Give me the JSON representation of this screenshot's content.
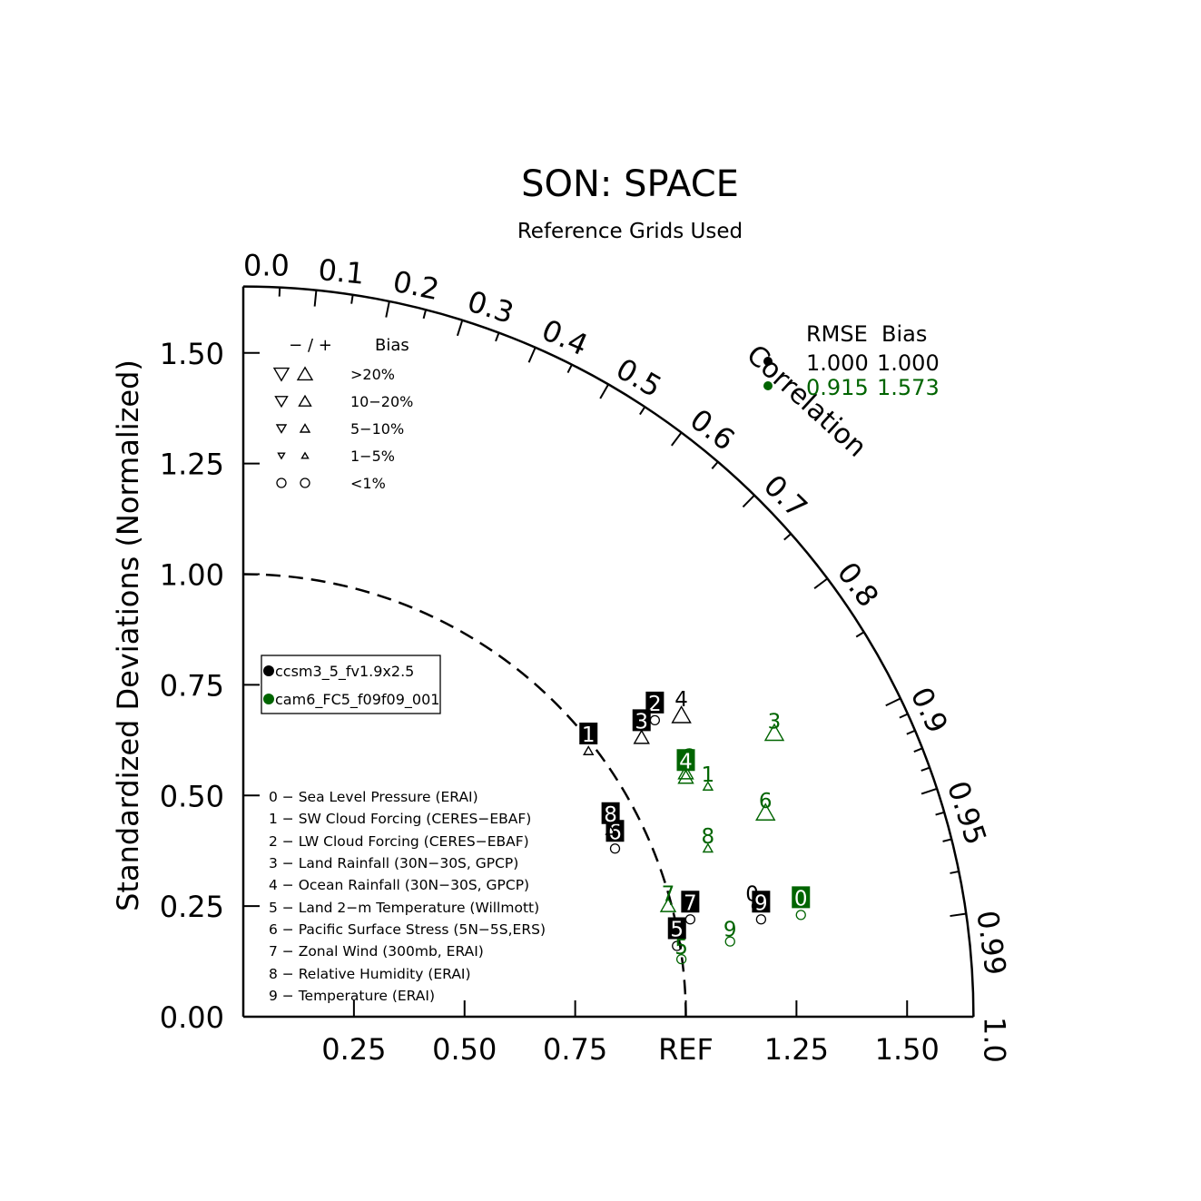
{
  "title": "SON: SPACE",
  "subtitle": "Reference Grids Used",
  "colors": {
    "case1": "#000000",
    "case2": "#006400"
  },
  "chart_data": {
    "type": "scatter",
    "ylabel": "Standardized Deviations (Normalized)",
    "arc_label": "Correlation",
    "ref_label": "REF",
    "max_std": 1.65,
    "x_ticks": [
      "0.25",
      "0.50",
      "0.75",
      "REF",
      "1.25",
      "1.50"
    ],
    "x_tick_values": [
      0.25,
      0.5,
      0.75,
      1.0,
      1.25,
      1.5
    ],
    "y_ticks": [
      "0.00",
      "0.25",
      "0.50",
      "0.75",
      "1.00",
      "1.25",
      "1.50"
    ],
    "y_tick_values": [
      0,
      0.25,
      0.5,
      0.75,
      1.0,
      1.25,
      1.5
    ],
    "corr_labels": [
      "0.0",
      "0.1",
      "0.2",
      "0.3",
      "0.4",
      "0.5",
      "0.6",
      "0.7",
      "0.8",
      "0.9",
      "0.95",
      "0.99",
      "1.0"
    ],
    "corr_label_values": [
      0,
      0.1,
      0.2,
      0.3,
      0.4,
      0.5,
      0.6,
      0.7,
      0.8,
      0.9,
      0.95,
      0.99,
      1.0
    ],
    "corr_minor_ticks": [
      0.05,
      0.15,
      0.25,
      0.35,
      0.45,
      0.55,
      0.65,
      0.75,
      0.85,
      0.91,
      0.92,
      0.93,
      0.94,
      0.96,
      0.97,
      0.98
    ],
    "series": [
      {
        "name": "ccsm3_5_fv1.9x2.5",
        "rmse": "1.000",
        "bias": "1.000",
        "points": [
          {
            "id": "0",
            "x": 1.15,
            "y": 0.28,
            "label_style": "plain",
            "marker_x": 1.17,
            "marker_y": 0.22,
            "marker": "circle"
          },
          {
            "id": "1",
            "x": 0.78,
            "y": 0.64,
            "label_style": "filled",
            "marker_x": 0.78,
            "marker_y": 0.6,
            "marker": "up-small"
          },
          {
            "id": "2",
            "x": 0.93,
            "y": 0.71,
            "label_style": "filled",
            "marker_x": 0.93,
            "marker_y": 0.67,
            "marker": "circle"
          },
          {
            "id": "3",
            "x": 0.9,
            "y": 0.67,
            "label_style": "filled",
            "marker_x": 0.9,
            "marker_y": 0.63,
            "marker": "up-mid"
          },
          {
            "id": "4",
            "x": 0.99,
            "y": 0.72,
            "label_style": "plain",
            "marker_x": 0.99,
            "marker_y": 0.68,
            "marker": "up-large"
          },
          {
            "id": "5",
            "x": 0.98,
            "y": 0.2,
            "label_style": "filled",
            "marker_x": 0.98,
            "marker_y": 0.16,
            "marker": "circle"
          },
          {
            "id": "6",
            "x": 0.84,
            "y": 0.42,
            "label_style": "filled",
            "marker_x": 0.84,
            "marker_y": 0.38,
            "marker": "circle"
          },
          {
            "id": "7",
            "x": 1.01,
            "y": 0.26,
            "label_style": "filled",
            "marker_x": 1.01,
            "marker_y": 0.22,
            "marker": "circle"
          },
          {
            "id": "8",
            "x": 0.83,
            "y": 0.46,
            "label_style": "filled",
            "marker_x": 0.83,
            "marker_y": 0.42,
            "marker": "up-small"
          },
          {
            "id": "9",
            "x": 1.17,
            "y": 0.26,
            "label_style": "filled",
            "marker_x": 1.16,
            "marker_y": 0.25,
            "marker": "circle"
          }
        ]
      },
      {
        "name": "cam6_FC5_f09f09_001",
        "rmse": "0.915",
        "bias": "1.573",
        "points": [
          {
            "id": "0",
            "x": 1.26,
            "y": 0.27,
            "label_style": "filled",
            "marker_x": 1.26,
            "marker_y": 0.23,
            "marker": "circle"
          },
          {
            "id": "1",
            "x": 1.05,
            "y": 0.55,
            "label_style": "plain",
            "marker_x": 1.05,
            "marker_y": 0.52,
            "marker": "up-small"
          },
          {
            "id": "2",
            "x": 1.01,
            "y": 0.59,
            "label_style": "plain",
            "marker_x": 1.0,
            "marker_y": 0.55,
            "marker": "up-mid"
          },
          {
            "id": "3",
            "x": 1.2,
            "y": 0.67,
            "label_style": "plain",
            "marker_x": 1.2,
            "marker_y": 0.64,
            "marker": "up-large"
          },
          {
            "id": "4",
            "x": 1.0,
            "y": 0.58,
            "label_style": "filled",
            "marker_x": 1.0,
            "marker_y": 0.54,
            "marker": "up-mid"
          },
          {
            "id": "5",
            "x": 0.99,
            "y": 0.16,
            "label_style": "plain",
            "marker_x": 0.99,
            "marker_y": 0.13,
            "marker": "circle"
          },
          {
            "id": "6",
            "x": 1.18,
            "y": 0.49,
            "label_style": "plain",
            "marker_x": 1.18,
            "marker_y": 0.46,
            "marker": "up-large"
          },
          {
            "id": "7",
            "x": 0.96,
            "y": 0.28,
            "label_style": "plain",
            "marker_x": 0.96,
            "marker_y": 0.25,
            "marker": "up-mid"
          },
          {
            "id": "8",
            "x": 1.05,
            "y": 0.41,
            "label_style": "plain",
            "marker_x": 1.05,
            "marker_y": 0.38,
            "marker": "up-small"
          },
          {
            "id": "9",
            "x": 1.1,
            "y": 0.2,
            "label_style": "plain",
            "marker_x": 1.1,
            "marker_y": 0.17,
            "marker": "circle"
          }
        ]
      }
    ]
  },
  "bias_legend": {
    "header_signs": "−  /  +",
    "header_bias": "Bias",
    "rows": [
      {
        "label": ">20%",
        "size": "large"
      },
      {
        "label": "10−20%",
        "size": "mid"
      },
      {
        "label": "5−10%",
        "size": "small"
      },
      {
        "label": "1−5%",
        "size": "tiny"
      },
      {
        "label": "<1%",
        "size": "circle"
      }
    ]
  },
  "stats_legend": {
    "header": "RMSE  Bias"
  },
  "case_legend": [
    "ccsm3_5_fv1.9x2.5",
    "cam6_FC5_f09f09_001"
  ],
  "variables": [
    "0 − Sea Level Pressure (ERAI)",
    "1 − SW Cloud Forcing (CERES−EBAF)",
    "2 − LW Cloud Forcing (CERES−EBAF)",
    "3 − Land Rainfall (30N−30S, GPCP)",
    "4 − Ocean Rainfall (30N−30S, GPCP)",
    "5 − Land 2−m Temperature (Willmott)",
    "6 − Pacific Surface Stress (5N−5S,ERS)",
    "7 − Zonal Wind (300mb, ERAI)",
    "8 − Relative Humidity (ERAI)",
    "9 − Temperature (ERAI)"
  ]
}
